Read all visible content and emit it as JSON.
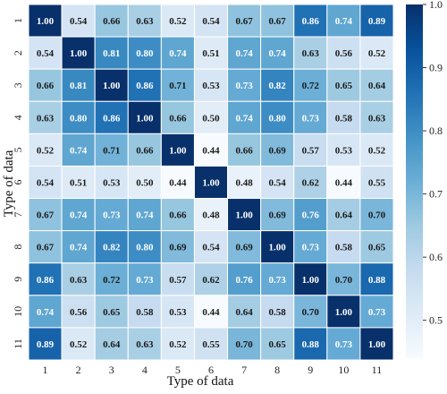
{
  "chart_data": {
    "type": "heatmap",
    "title": "",
    "xlabel": "Type of data",
    "ylabel": "Type of data",
    "x_categories": [
      "1",
      "2",
      "3",
      "4",
      "5",
      "6",
      "7",
      "8",
      "9",
      "10",
      "11"
    ],
    "y_categories": [
      "1",
      "2",
      "3",
      "4",
      "5",
      "6",
      "7",
      "8",
      "9",
      "10",
      "11"
    ],
    "values": [
      [
        1.0,
        0.54,
        0.66,
        0.63,
        0.52,
        0.54,
        0.67,
        0.67,
        0.86,
        0.74,
        0.89
      ],
      [
        0.54,
        1.0,
        0.81,
        0.8,
        0.74,
        0.51,
        0.74,
        0.74,
        0.63,
        0.56,
        0.52
      ],
      [
        0.66,
        0.81,
        1.0,
        0.86,
        0.71,
        0.53,
        0.73,
        0.82,
        0.72,
        0.65,
        0.64
      ],
      [
        0.63,
        0.8,
        0.86,
        1.0,
        0.66,
        0.5,
        0.74,
        0.8,
        0.73,
        0.58,
        0.63
      ],
      [
        0.52,
        0.74,
        0.71,
        0.66,
        1.0,
        0.44,
        0.66,
        0.69,
        0.57,
        0.53,
        0.52
      ],
      [
        0.54,
        0.51,
        0.53,
        0.5,
        0.44,
        1.0,
        0.48,
        0.54,
        0.62,
        0.44,
        0.55
      ],
      [
        0.67,
        0.74,
        0.73,
        0.74,
        0.66,
        0.48,
        1.0,
        0.69,
        0.76,
        0.64,
        0.7
      ],
      [
        0.67,
        0.74,
        0.82,
        0.8,
        0.69,
        0.54,
        0.69,
        1.0,
        0.73,
        0.58,
        0.65
      ],
      [
        0.86,
        0.63,
        0.72,
        0.73,
        0.57,
        0.62,
        0.76,
        0.73,
        1.0,
        0.7,
        0.88
      ],
      [
        0.74,
        0.56,
        0.65,
        0.58,
        0.53,
        0.44,
        0.64,
        0.58,
        0.7,
        1.0,
        0.73
      ],
      [
        0.89,
        0.52,
        0.64,
        0.63,
        0.52,
        0.55,
        0.7,
        0.65,
        0.88,
        0.73,
        1.0
      ]
    ],
    "colorbar": {
      "min": 0.44,
      "max": 1.0,
      "ticks": [
        "1.0",
        "0.9",
        "0.8",
        "0.7",
        "0.6",
        "0.5"
      ],
      "tick_values": [
        1.0,
        0.9,
        0.8,
        0.7,
        0.6,
        0.5
      ]
    },
    "colormap": [
      "#f7fbff",
      "#deebf7",
      "#c6dbef",
      "#9ecae1",
      "#6baed6",
      "#4292c6",
      "#2171b5",
      "#08519c",
      "#08306b"
    ],
    "grid": "white cell borders",
    "legend": "colorbar right"
  }
}
